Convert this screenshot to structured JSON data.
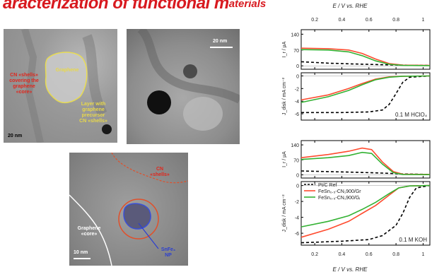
{
  "title": {
    "main": "aracterization of functional m",
    "tail": "aterials"
  },
  "tem_images": {
    "a": {
      "labels": {
        "shells": "CN «shells»\ncovering the\ngraphene\n«core»",
        "graphene": "Graphene",
        "layer": "Layer with\ngraphene\nprecursor\nCN «shells»"
      },
      "scale": "20 nm"
    },
    "b": {
      "scale": "20 nm"
    },
    "c": {
      "labels": {
        "cn": "CN\n«shells»",
        "graphene": "Graphene\n«core»",
        "np": "SnFe₃\nNP"
      },
      "scale": "10 nm"
    }
  },
  "chart_data": {
    "type": "line",
    "title": "",
    "top_axis_label": "E / V vs. RHE",
    "bottom_axis_label": "E / V vs. RHE",
    "x_ticks": [
      0.2,
      0.4,
      0.6,
      0.8,
      1
    ],
    "x_range": [
      0.1,
      1.05
    ],
    "legend": {
      "placement": "middle-left",
      "entries": [
        {
          "name": "Pt/C Ref",
          "style": "dashed",
          "color": "#000000"
        },
        {
          "name": "FeSn₀.₅-CN₁900/Gr",
          "style": "solid",
          "color": "#ff4b2e"
        },
        {
          "name": "FeSn₀.₅-CN₁900/Gᵢ",
          "style": "solid",
          "color": "#33b233"
        }
      ]
    },
    "panels": [
      {
        "id": "ring-acid",
        "ylabel": "I_r / µA",
        "yticks": [
          0,
          70,
          140
        ],
        "ylim": [
          -15,
          160
        ],
        "annotation": "",
        "series": [
          {
            "name": "Pt/C Ref",
            "color": "#000000",
            "dashed": true,
            "points": [
              [
                0.1,
                18
              ],
              [
                0.3,
                12
              ],
              [
                0.5,
                8
              ],
              [
                0.7,
                5
              ],
              [
                0.85,
                3
              ],
              [
                1.05,
                2
              ]
            ]
          },
          {
            "name": "FeSn₀.₅-CN₁900/Gr",
            "color": "#ff4b2e",
            "dashed": false,
            "points": [
              [
                0.1,
                78
              ],
              [
                0.3,
                76
              ],
              [
                0.45,
                70
              ],
              [
                0.55,
                55
              ],
              [
                0.65,
                30
              ],
              [
                0.75,
                10
              ],
              [
                0.85,
                3
              ],
              [
                1.05,
                2
              ]
            ]
          },
          {
            "name": "FeSn₀.₅-CN₁900/Gᵢ",
            "color": "#33b233",
            "dashed": false,
            "points": [
              [
                0.1,
                72
              ],
              [
                0.3,
                70
              ],
              [
                0.45,
                62
              ],
              [
                0.55,
                45
              ],
              [
                0.65,
                22
              ],
              [
                0.75,
                7
              ],
              [
                0.85,
                2
              ],
              [
                1.05,
                1
              ]
            ]
          }
        ]
      },
      {
        "id": "disk-acid",
        "ylabel": "J_disk / mA cm⁻²",
        "yticks": [
          -6,
          -4,
          -2,
          0
        ],
        "ylim": [
          -7,
          0.5
        ],
        "annotation": "0.1 M HClO₄",
        "series": [
          {
            "name": "Pt/C Ref",
            "color": "#000000",
            "dashed": true,
            "points": [
              [
                0.1,
                -5.8
              ],
              [
                0.4,
                -5.8
              ],
              [
                0.6,
                -5.7
              ],
              [
                0.7,
                -5.4
              ],
              [
                0.75,
                -4.5
              ],
              [
                0.8,
                -2.8
              ],
              [
                0.85,
                -1.0
              ],
              [
                0.9,
                -0.2
              ],
              [
                1.05,
                0
              ]
            ]
          },
          {
            "name": "FeSn₀.₅-CN₁900/Gr",
            "color": "#ff4b2e",
            "dashed": false,
            "points": [
              [
                0.1,
                -3.8
              ],
              [
                0.3,
                -3.0
              ],
              [
                0.45,
                -2.0
              ],
              [
                0.55,
                -1.2
              ],
              [
                0.65,
                -0.5
              ],
              [
                0.75,
                -0.15
              ],
              [
                0.85,
                -0.05
              ],
              [
                1.05,
                0
              ]
            ]
          },
          {
            "name": "FeSn₀.₅-CN₁900/Gᵢ",
            "color": "#33b233",
            "dashed": false,
            "points": [
              [
                0.1,
                -4.2
              ],
              [
                0.3,
                -3.3
              ],
              [
                0.45,
                -2.3
              ],
              [
                0.55,
                -1.4
              ],
              [
                0.65,
                -0.6
              ],
              [
                0.75,
                -0.2
              ],
              [
                0.85,
                -0.05
              ],
              [
                1.05,
                0
              ]
            ]
          }
        ]
      },
      {
        "id": "ring-alkaline",
        "ylabel": "I_r / µA",
        "yticks": [
          0,
          70,
          140
        ],
        "ylim": [
          -15,
          160
        ],
        "annotation": "",
        "series": [
          {
            "name": "Pt/C Ref",
            "color": "#000000",
            "dashed": true,
            "points": [
              [
                0.1,
                18
              ],
              [
                0.3,
                15
              ],
              [
                0.5,
                12
              ],
              [
                0.7,
                8
              ],
              [
                0.85,
                4
              ],
              [
                1.05,
                2
              ]
            ]
          },
          {
            "name": "FeSn₀.₅-CN₁900/Gr",
            "color": "#ff4b2e",
            "dashed": false,
            "points": [
              [
                0.1,
                80
              ],
              [
                0.3,
                95
              ],
              [
                0.45,
                110
              ],
              [
                0.55,
                125
              ],
              [
                0.62,
                118
              ],
              [
                0.7,
                60
              ],
              [
                0.78,
                15
              ],
              [
                0.85,
                3
              ],
              [
                1.05,
                2
              ]
            ]
          },
          {
            "name": "FeSn₀.₅-CN₁900/Gᵢ",
            "color": "#33b233",
            "dashed": false,
            "points": [
              [
                0.1,
                72
              ],
              [
                0.3,
                80
              ],
              [
                0.45,
                90
              ],
              [
                0.55,
                105
              ],
              [
                0.62,
                100
              ],
              [
                0.7,
                50
              ],
              [
                0.78,
                10
              ],
              [
                0.85,
                2
              ],
              [
                1.05,
                1
              ]
            ]
          }
        ]
      },
      {
        "id": "disk-alkaline",
        "ylabel": "J_disk / mA cm⁻²",
        "yticks": [
          -6,
          -4,
          -2,
          0
        ],
        "ylim": [
          -7.5,
          0.5
        ],
        "annotation": "0.1 M KOH",
        "series": [
          {
            "name": "Pt/C Ref",
            "color": "#000000",
            "dashed": true,
            "points": [
              [
                0.1,
                -7.2
              ],
              [
                0.4,
                -7.0
              ],
              [
                0.6,
                -6.8
              ],
              [
                0.7,
                -6.3
              ],
              [
                0.8,
                -5.0
              ],
              [
                0.85,
                -3.5
              ],
              [
                0.9,
                -1.5
              ],
              [
                0.95,
                -0.3
              ],
              [
                1.05,
                0
              ]
            ]
          },
          {
            "name": "FeSn₀.₅-CN₁900/Gr",
            "color": "#ff4b2e",
            "dashed": false,
            "points": [
              [
                0.1,
                -6.5
              ],
              [
                0.3,
                -5.5
              ],
              [
                0.45,
                -4.5
              ],
              [
                0.55,
                -3.5
              ],
              [
                0.65,
                -2.5
              ],
              [
                0.75,
                -1.2
              ],
              [
                0.82,
                -0.3
              ],
              [
                0.9,
                -0.05
              ],
              [
                1.05,
                0
              ]
            ]
          },
          {
            "name": "FeSn₀.₅-CN₁900/Gᵢ",
            "color": "#33b233",
            "dashed": false,
            "points": [
              [
                0.1,
                -5.2
              ],
              [
                0.3,
                -4.5
              ],
              [
                0.45,
                -3.8
              ],
              [
                0.55,
                -3.0
              ],
              [
                0.65,
                -2.1
              ],
              [
                0.75,
                -1.0
              ],
              [
                0.82,
                -0.3
              ],
              [
                0.9,
                -0.05
              ],
              [
                1.05,
                0
              ]
            ]
          }
        ]
      }
    ]
  }
}
